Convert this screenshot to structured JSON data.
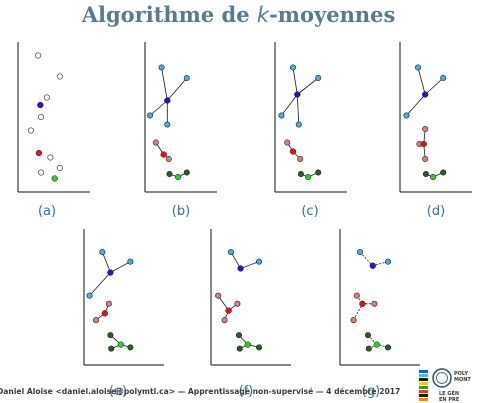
{
  "slide": {
    "title_prefix": "Algorithme de ",
    "title_k": "k",
    "title_suffix": "-moyennes",
    "footer": "Daniel Aloise <daniel.aloise@polymtl.ca> — Apprentissage non-supervisé — 4 décembre 2017",
    "logo_line1": "POLY",
    "logo_line2": "MONT",
    "logo_line3": "LE GÉN",
    "logo_line4": "EN PRE"
  },
  "colors": {
    "title": "#5a7a8c",
    "caption": "#3a6e8f",
    "centroid_blue": "#1a1acc",
    "centroid_red": "#d81818",
    "centroid_green": "#2ecc2e",
    "cluster_blue": "#4ab0d8",
    "cluster_red": "#d88080",
    "cluster_green": "#2d5a2d"
  },
  "panels": [
    {
      "label": "(a)",
      "assigned": false,
      "lines": "none",
      "points": [
        [
          0.28,
          0.09
        ],
        [
          0.58,
          0.23
        ],
        [
          0.4,
          0.37
        ],
        [
          0.18,
          0.59
        ],
        [
          0.32,
          0.5
        ],
        [
          0.45,
          0.77
        ],
        [
          0.32,
          0.87
        ],
        [
          0.58,
          0.84
        ]
      ],
      "centroids": [
        [
          0.31,
          0.42,
          "blue"
        ],
        [
          0.29,
          0.74,
          "red"
        ],
        [
          0.51,
          0.91,
          "green"
        ]
      ]
    },
    {
      "label": "(b)",
      "assigned": true,
      "lines": "solid",
      "points": [
        [
          0.23,
          0.17,
          "blue"
        ],
        [
          0.58,
          0.24,
          "blue"
        ],
        [
          0.07,
          0.49,
          "blue"
        ],
        [
          0.31,
          0.55,
          "blue"
        ],
        [
          0.15,
          0.67,
          "red"
        ],
        [
          0.33,
          0.78,
          "red"
        ],
        [
          0.34,
          0.88,
          "green"
        ],
        [
          0.58,
          0.87,
          "green"
        ]
      ],
      "centroids": [
        [
          0.31,
          0.39,
          "blue"
        ],
        [
          0.26,
          0.75,
          "red"
        ],
        [
          0.46,
          0.9,
          "green"
        ]
      ]
    },
    {
      "label": "(c)",
      "assigned": true,
      "lines": "solid",
      "points": [
        [
          0.25,
          0.17,
          "blue"
        ],
        [
          0.6,
          0.24,
          "blue"
        ],
        [
          0.09,
          0.49,
          "blue"
        ],
        [
          0.33,
          0.55,
          "blue"
        ],
        [
          0.17,
          0.67,
          "red"
        ],
        [
          0.35,
          0.78,
          "red"
        ],
        [
          0.36,
          0.88,
          "green"
        ],
        [
          0.6,
          0.87,
          "green"
        ]
      ],
      "centroids": [
        [
          0.31,
          0.35,
          "blue"
        ],
        [
          0.25,
          0.73,
          "red"
        ],
        [
          0.46,
          0.9,
          "green"
        ]
      ]
    },
    {
      "label": "(d)",
      "assigned": true,
      "lines": "solid",
      "points": [
        [
          0.25,
          0.17,
          "blue"
        ],
        [
          0.6,
          0.24,
          "blue"
        ],
        [
          0.09,
          0.49,
          "blue"
        ],
        [
          0.35,
          0.58,
          "red"
        ],
        [
          0.27,
          0.68,
          "red"
        ],
        [
          0.35,
          0.78,
          "red"
        ],
        [
          0.36,
          0.88,
          "green"
        ],
        [
          0.6,
          0.87,
          "green"
        ]
      ],
      "centroids": [
        [
          0.35,
          0.35,
          "blue"
        ],
        [
          0.33,
          0.68,
          "red"
        ],
        [
          0.46,
          0.9,
          "green"
        ]
      ]
    },
    {
      "label": "(e)",
      "assigned": true,
      "lines": "solid",
      "points": [
        [
          0.23,
          0.17,
          "blue"
        ],
        [
          0.58,
          0.24,
          "blue"
        ],
        [
          0.07,
          0.49,
          "blue"
        ],
        [
          0.31,
          0.55,
          "red"
        ],
        [
          0.15,
          0.67,
          "red"
        ],
        [
          0.33,
          0.78,
          "green"
        ],
        [
          0.34,
          0.88,
          "green"
        ],
        [
          0.58,
          0.87,
          "green"
        ]
      ],
      "centroids": [
        [
          0.33,
          0.32,
          "blue"
        ],
        [
          0.26,
          0.62,
          "red"
        ],
        [
          0.46,
          0.85,
          "green"
        ]
      ]
    },
    {
      "label": "(f)",
      "assigned": true,
      "lines": "solid",
      "points": [
        [
          0.25,
          0.17,
          "blue"
        ],
        [
          0.6,
          0.24,
          "blue"
        ],
        [
          0.09,
          0.49,
          "red"
        ],
        [
          0.33,
          0.55,
          "red"
        ],
        [
          0.17,
          0.67,
          "red"
        ],
        [
          0.35,
          0.78,
          "green"
        ],
        [
          0.36,
          0.88,
          "green"
        ],
        [
          0.6,
          0.87,
          "green"
        ]
      ],
      "centroids": [
        [
          0.37,
          0.29,
          "blue"
        ],
        [
          0.22,
          0.6,
          "red"
        ],
        [
          0.46,
          0.85,
          "green"
        ]
      ]
    },
    {
      "label": "(g)",
      "assigned": true,
      "lines": "dashed",
      "points": [
        [
          0.25,
          0.17,
          "blue"
        ],
        [
          0.6,
          0.24,
          "blue"
        ],
        [
          0.21,
          0.49,
          "red"
        ],
        [
          0.43,
          0.55,
          "red"
        ],
        [
          0.17,
          0.67,
          "red"
        ],
        [
          0.35,
          0.78,
          "green"
        ],
        [
          0.36,
          0.88,
          "green"
        ],
        [
          0.6,
          0.87,
          "green"
        ]
      ],
      "centroids": [
        [
          0.41,
          0.27,
          "blue"
        ],
        [
          0.28,
          0.55,
          "red"
        ],
        [
          0.46,
          0.85,
          "green"
        ]
      ]
    }
  ]
}
